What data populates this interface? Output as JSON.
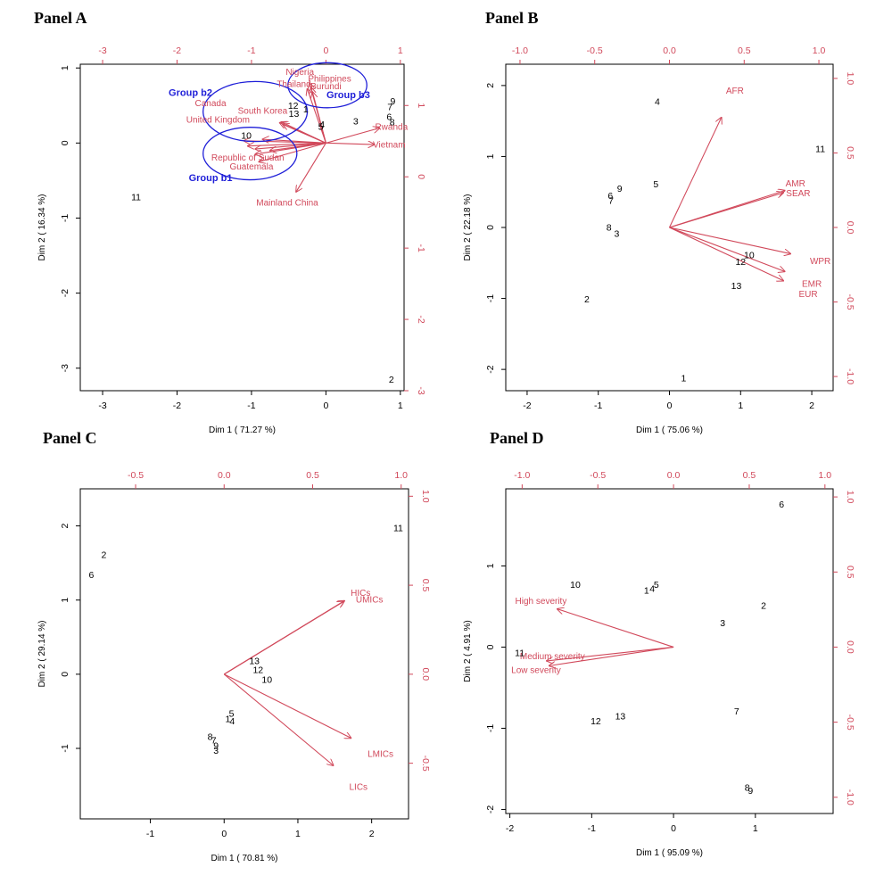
{
  "colors": {
    "vector": "#D1495B",
    "group": "#1f1fd8",
    "axis": "#000000"
  },
  "chart_data": [
    {
      "type": "scatter",
      "title": "Panel A",
      "xlabel": "Dim 1  ( 71.27 %)",
      "ylabel": "Dim 2  ( 16.34 %)",
      "xlim": [
        -3.3,
        1.05
      ],
      "ylim": [
        -3.3,
        1.05
      ],
      "xticks": [
        "-3",
        "-2",
        "-1",
        "0",
        "1"
      ],
      "xtick_values": [
        -3,
        -2,
        -1,
        0,
        1
      ],
      "yticks": [
        "-3",
        "-2",
        "-1",
        "0",
        "1"
      ],
      "ytick_values": [
        -3,
        -2,
        -1,
        0,
        1
      ],
      "top_ticks": [
        "-3",
        "-2",
        "-1",
        "0",
        "1"
      ],
      "top_tick_values": [
        -3,
        -2,
        -1,
        0,
        1
      ],
      "right_ticks": [
        "-3",
        "-2",
        "-1",
        "0",
        "1"
      ],
      "right_tick_values": [
        -3.3,
        -2.35,
        -1.4,
        -0.45,
        0.5
      ],
      "points": [
        {
          "label": "1",
          "x": -0.27,
          "y": 0.44
        },
        {
          "label": "2",
          "x": 0.88,
          "y": -3.16
        },
        {
          "label": "3",
          "x": 0.4,
          "y": 0.28
        },
        {
          "label": "4",
          "x": -0.05,
          "y": 0.24
        },
        {
          "label": "5",
          "x": -0.07,
          "y": 0.21
        },
        {
          "label": "6",
          "x": 0.85,
          "y": 0.34
        },
        {
          "label": "7",
          "x": 0.86,
          "y": 0.47
        },
        {
          "label": "8",
          "x": 0.89,
          "y": 0.27
        },
        {
          "label": "9",
          "x": 0.9,
          "y": 0.55
        },
        {
          "label": "10",
          "x": -1.07,
          "y": 0.09
        },
        {
          "label": "11",
          "x": -2.55,
          "y": -0.73
        },
        {
          "label": "12",
          "x": -0.44,
          "y": 0.49
        },
        {
          "label": "13",
          "x": -0.43,
          "y": 0.38
        }
      ],
      "vectors": [
        {
          "label": "Nigeria",
          "x": -0.22,
          "y": 0.8
        },
        {
          "label": "Thailand",
          "x": -0.25,
          "y": 0.72
        },
        {
          "label": "Philippines",
          "x": -0.2,
          "y": 0.74
        },
        {
          "label": "Burundi",
          "x": -0.18,
          "y": 0.68
        },
        {
          "label": "South Korea",
          "x": -0.6,
          "y": 0.28
        },
        {
          "label": "Canada",
          "x": -0.62,
          "y": 0.27
        },
        {
          "label": "United Kingdom",
          "x": -0.58,
          "y": 0.25
        },
        {
          "label": "Rwanda",
          "x": 0.72,
          "y": 0.2
        },
        {
          "label": "Vietnam",
          "x": 0.65,
          "y": -0.02
        },
        {
          "label": "Mainland China",
          "x": -0.4,
          "y": -0.65
        },
        {
          "label": "Republic of Sudan",
          "x": -0.95,
          "y": -0.15
        },
        {
          "label": "Guatemala",
          "x": -0.9,
          "y": -0.25
        },
        {
          "label": "",
          "x": -1.1,
          "y": 0.03
        },
        {
          "label": "",
          "x": -1.05,
          "y": -0.04
        },
        {
          "label": "",
          "x": -0.95,
          "y": -0.08
        },
        {
          "label": "",
          "x": -0.85,
          "y": 0.05
        },
        {
          "label": "",
          "x": -0.75,
          "y": -0.1
        }
      ],
      "labels_on_plot": [
        {
          "text": "Nigeria",
          "x": -0.35,
          "y": 0.94
        },
        {
          "text": "Thailand",
          "x": -0.43,
          "y": 0.78
        },
        {
          "text": "Philippines",
          "x": 0.05,
          "y": 0.85
        },
        {
          "text": "Burundi",
          "x": 0.0,
          "y": 0.75
        },
        {
          "text": "Canada",
          "x": -1.55,
          "y": 0.52
        },
        {
          "text": "South Korea",
          "x": -0.85,
          "y": 0.42
        },
        {
          "text": "United Kingdom",
          "x": -1.45,
          "y": 0.3
        },
        {
          "text": "Rwanda",
          "x": 0.88,
          "y": 0.21
        },
        {
          "text": "Vietnam",
          "x": 0.85,
          "y": -0.03
        },
        {
          "text": "Mainland China",
          "x": -0.52,
          "y": -0.8
        },
        {
          "text": "Republic of Sudan",
          "x": -1.05,
          "y": -0.2
        },
        {
          "text": "Guatemala",
          "x": -1.0,
          "y": -0.32
        },
        {
          "text": "Group b2",
          "x": -1.82,
          "y": 0.66,
          "group": true
        },
        {
          "text": "Group b3",
          "x": 0.3,
          "y": 0.63,
          "group": true
        },
        {
          "text": "Group b1",
          "x": -1.55,
          "y": -0.47,
          "group": true
        }
      ],
      "ellipses": [
        {
          "name": "Group b2",
          "cx": -0.95,
          "cy": 0.42,
          "rx": 0.7,
          "ry": 0.4
        },
        {
          "name": "Group b1",
          "cx": -1.02,
          "cy": -0.14,
          "rx": 0.63,
          "ry": 0.35
        },
        {
          "name": "Group b3",
          "cx": 0.02,
          "cy": 0.77,
          "rx": 0.53,
          "ry": 0.3
        }
      ]
    },
    {
      "type": "scatter",
      "title": "Panel B",
      "xlabel": "Dim 1  ( 75.06 %)",
      "ylabel": "Dim 2  ( 22.18 %)",
      "xlim": [
        -2.3,
        2.3
      ],
      "ylim": [
        -2.3,
        2.3
      ],
      "xticks": [
        "-2",
        "-1",
        "0",
        "1",
        "2"
      ],
      "xtick_values": [
        -2,
        -1,
        0,
        1,
        2
      ],
      "yticks": [
        "-2",
        "-1",
        "0",
        "1",
        "2"
      ],
      "ytick_values": [
        -2,
        -1,
        0,
        1,
        2
      ],
      "top_ticks": [
        "-1.0",
        "-0.5",
        "0.0",
        "0.5",
        "1.0"
      ],
      "top_tick_values": [
        -2.1,
        -1.05,
        0,
        1.05,
        2.1
      ],
      "right_ticks": [
        "-1.0",
        "-0.5",
        "0.0",
        "0.5",
        "1.0"
      ],
      "right_tick_values": [
        -2.1,
        -1.05,
        0,
        1.05,
        2.1
      ],
      "points": [
        {
          "label": "1",
          "x": 0.2,
          "y": -2.13
        },
        {
          "label": "2",
          "x": -1.16,
          "y": -1.02
        },
        {
          "label": "3",
          "x": -0.74,
          "y": -0.1
        },
        {
          "label": "4",
          "x": -0.17,
          "y": 1.76
        },
        {
          "label": "5",
          "x": -0.19,
          "y": 0.6
        },
        {
          "label": "6",
          "x": -0.83,
          "y": 0.44
        },
        {
          "label": "7",
          "x": -0.82,
          "y": 0.37
        },
        {
          "label": "8",
          "x": -0.85,
          "y": -0.01
        },
        {
          "label": "9",
          "x": -0.7,
          "y": 0.54
        },
        {
          "label": "10",
          "x": 1.12,
          "y": -0.4
        },
        {
          "label": "11",
          "x": 2.12,
          "y": 1.1
        },
        {
          "label": "12",
          "x": 1.0,
          "y": -0.49
        },
        {
          "label": "13",
          "x": 0.94,
          "y": -0.83
        }
      ],
      "vectors": [
        {
          "label": "AFR",
          "x": 0.73,
          "y": 1.55
        },
        {
          "label": "AMR",
          "x": 1.62,
          "y": 0.52
        },
        {
          "label": "SEAR",
          "x": 1.6,
          "y": 0.49
        },
        {
          "label": "WPR",
          "x": 1.7,
          "y": -0.37
        },
        {
          "label": "EMR",
          "x": 1.62,
          "y": -0.62
        },
        {
          "label": "EUR",
          "x": 1.6,
          "y": -0.75
        }
      ],
      "labels_on_plot": [
        {
          "text": "AFR",
          "x": 0.92,
          "y": 1.92
        },
        {
          "text": "AMR",
          "x": 1.77,
          "y": 0.61
        },
        {
          "text": "SEAR",
          "x": 1.81,
          "y": 0.47
        },
        {
          "text": "WPR",
          "x": 2.12,
          "y": -0.48
        },
        {
          "text": "EMR",
          "x": 2.0,
          "y": -0.8
        },
        {
          "text": "EUR",
          "x": 1.95,
          "y": -0.95
        }
      ],
      "ellipses": []
    },
    {
      "type": "scatter",
      "title": "Panel C",
      "xlabel": "Dim 1  ( 70.81 %)",
      "ylabel": "Dim 2  ( 29.14 %)",
      "xlim": [
        -1.95,
        2.5
      ],
      "ylim": [
        -1.95,
        2.5
      ],
      "xticks": [
        "-1",
        "0",
        "1",
        "2"
      ],
      "xtick_values": [
        -1,
        0,
        1,
        2
      ],
      "yticks": [
        "-1",
        "0",
        "1",
        "2"
      ],
      "ytick_values": [
        -1,
        0,
        1,
        2
      ],
      "top_ticks": [
        "-0.5",
        "0.0",
        "0.5",
        "1.0"
      ],
      "top_tick_values": [
        -1.2,
        0,
        1.2,
        2.4
      ],
      "right_ticks": [
        "-0.5",
        "0.0",
        "0.5",
        "1.0"
      ],
      "right_tick_values": [
        -1.2,
        0,
        1.2,
        2.4
      ],
      "points": [
        {
          "label": "1",
          "x": 0.05,
          "y": -0.61
        },
        {
          "label": "2",
          "x": -1.63,
          "y": 1.6
        },
        {
          "label": "3",
          "x": -0.11,
          "y": -1.04
        },
        {
          "label": "4",
          "x": 0.11,
          "y": -0.64
        },
        {
          "label": "5",
          "x": 0.1,
          "y": -0.54
        },
        {
          "label": "6",
          "x": -1.8,
          "y": 1.33
        },
        {
          "label": "7",
          "x": -0.14,
          "y": -0.9
        },
        {
          "label": "8",
          "x": -0.19,
          "y": -0.85
        },
        {
          "label": "9",
          "x": -0.11,
          "y": -0.97
        },
        {
          "label": "10",
          "x": 0.58,
          "y": -0.08
        },
        {
          "label": "11",
          "x": 2.36,
          "y": 1.96
        },
        {
          "label": "12",
          "x": 0.46,
          "y": 0.05
        },
        {
          "label": "13",
          "x": 0.41,
          "y": 0.17
        }
      ],
      "vectors": [
        {
          "label": "HICs",
          "x": 1.63,
          "y": 0.99
        },
        {
          "label": "UMICs",
          "x": 1.62,
          "y": 0.98
        },
        {
          "label": "LMICs",
          "x": 1.72,
          "y": -0.86
        },
        {
          "label": "LICs",
          "x": 1.48,
          "y": -1.23
        }
      ],
      "labels_on_plot": [
        {
          "text": "HICs",
          "x": 1.85,
          "y": 1.09
        },
        {
          "text": "UMICs",
          "x": 1.97,
          "y": 1.0
        },
        {
          "text": "LMICs",
          "x": 2.12,
          "y": -1.08
        },
        {
          "text": "LICs",
          "x": 1.82,
          "y": -1.53
        }
      ],
      "ellipses": []
    },
    {
      "type": "scatter",
      "title": "Panel D",
      "xlabel": "Dim 1  ( 95.09 %)",
      "ylabel": "Dim 2  ( 4.91 %)",
      "xlim": [
        -2.05,
        1.95
      ],
      "ylim": [
        -2.05,
        1.95
      ],
      "xticks": [
        "-2",
        "-1",
        "0",
        "1"
      ],
      "xtick_values": [
        -2,
        -1,
        0,
        1
      ],
      "yticks": [
        "-2",
        "-1",
        "0",
        "1"
      ],
      "ytick_values": [
        -2,
        -1,
        0,
        1
      ],
      "top_ticks": [
        "-1.0",
        "-0.5",
        "0.0",
        "0.5",
        "1.0"
      ],
      "top_tick_values": [
        -1.85,
        -0.925,
        0,
        0.925,
        1.85
      ],
      "right_ticks": [
        "-1.0",
        "-0.5",
        "0.0",
        "0.5",
        "1.0"
      ],
      "right_tick_values": [
        -1.85,
        -0.925,
        0,
        0.925,
        1.85
      ],
      "points": [
        {
          "label": "1",
          "x": -0.33,
          "y": 0.69
        },
        {
          "label": "2",
          "x": 1.1,
          "y": 0.5
        },
        {
          "label": "3",
          "x": 0.6,
          "y": 0.29
        },
        {
          "label": "4",
          "x": -0.26,
          "y": 0.71
        },
        {
          "label": "5",
          "x": -0.21,
          "y": 0.76
        },
        {
          "label": "6",
          "x": 1.32,
          "y": 1.75
        },
        {
          "label": "7",
          "x": 0.77,
          "y": -0.8
        },
        {
          "label": "8",
          "x": 0.9,
          "y": -1.74
        },
        {
          "label": "9",
          "x": 0.94,
          "y": -1.78
        },
        {
          "label": "10",
          "x": -1.2,
          "y": 0.76
        },
        {
          "label": "11",
          "x": -1.88,
          "y": -0.08
        },
        {
          "label": "12",
          "x": -0.95,
          "y": -0.92
        },
        {
          "label": "13",
          "x": -0.65,
          "y": -0.86
        }
      ],
      "vectors": [
        {
          "label": "High severity",
          "x": -1.42,
          "y": 0.47
        },
        {
          "label": "Medium severity",
          "x": -1.55,
          "y": -0.17
        },
        {
          "label": "Low severity",
          "x": -1.52,
          "y": -0.23
        }
      ],
      "labels_on_plot": [
        {
          "text": "High severity",
          "x": -1.62,
          "y": 0.56
        },
        {
          "text": "Medium severity",
          "x": -1.48,
          "y": -0.12
        },
        {
          "text": "Low severity",
          "x": -1.68,
          "y": -0.29
        }
      ],
      "ellipses": []
    }
  ]
}
